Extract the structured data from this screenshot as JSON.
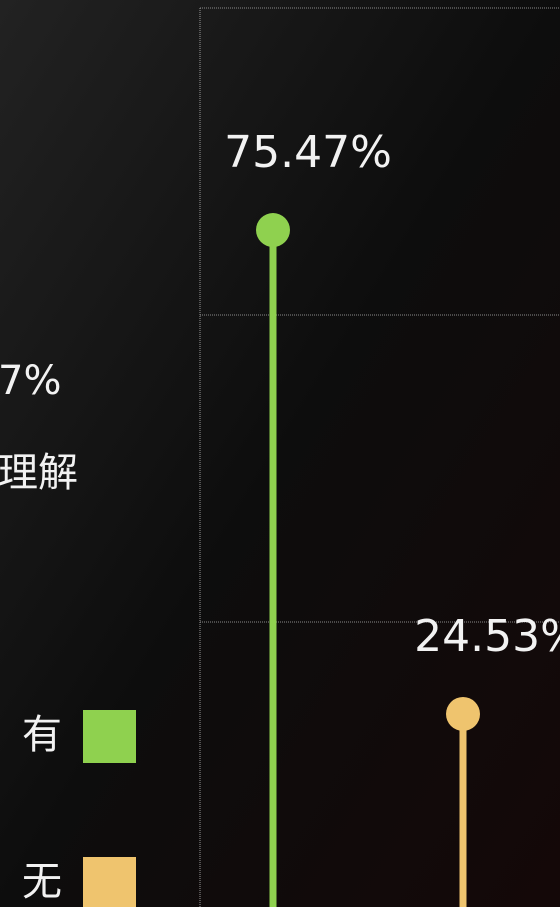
{
  "chart_data": {
    "type": "lollipop",
    "annotations": [
      "7%",
      "理解"
    ],
    "series": [
      {
        "name": "有",
        "color": "#8fd14f",
        "values": [
          75.47
        ],
        "value_labels": [
          "75.47%"
        ]
      },
      {
        "name": "无",
        "color": "#efc46e",
        "values": [
          24.53
        ],
        "value_labels": [
          "24.53%"
        ]
      }
    ],
    "ylim": [
      0,
      100
    ]
  }
}
